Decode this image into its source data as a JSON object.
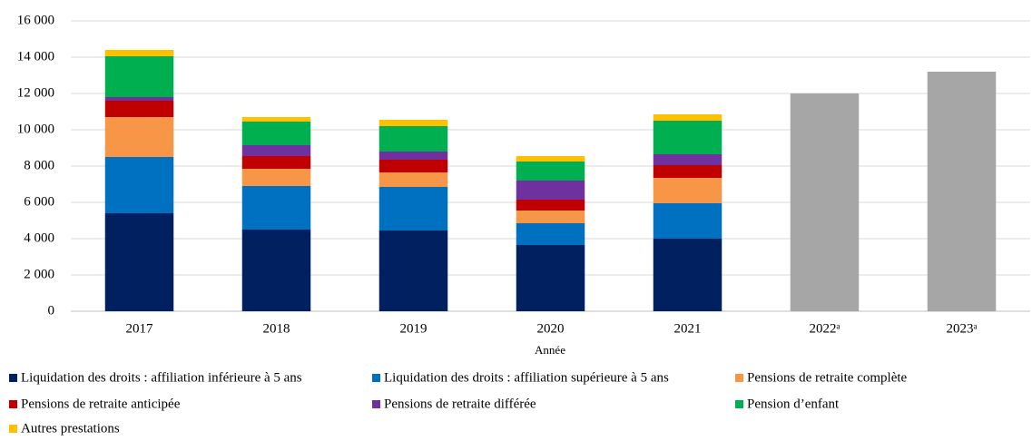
{
  "chart_data": {
    "type": "stacked_bar",
    "x_label": "Année",
    "categories": [
      "2017",
      "2018",
      "2019",
      "2020",
      "2021",
      "2022ᵃ",
      "2023ᵃ"
    ],
    "series": [
      {
        "name": "Liquidation des droits : affiliation inférieure à 5 ans",
        "color": "#002060",
        "values": [
          5400,
          4500,
          4450,
          3650,
          4000,
          null,
          null
        ]
      },
      {
        "name": "Liquidation des droits : affiliation supérieure à 5 ans",
        "color": "#0070c0",
        "values": [
          3100,
          2400,
          2400,
          1200,
          1950,
          null,
          null
        ]
      },
      {
        "name": "Pensions de retraite complète",
        "color": "#f79646",
        "values": [
          2200,
          950,
          800,
          700,
          1400,
          null,
          null
        ]
      },
      {
        "name": "Pensions de retraite anticipée",
        "color": "#c00000",
        "values": [
          900,
          700,
          700,
          600,
          700,
          null,
          null
        ]
      },
      {
        "name": "Pensions de retraite différée",
        "color": "#7030a0",
        "values": [
          200,
          600,
          450,
          1050,
          600,
          null,
          null
        ]
      },
      {
        "name": "Pension d’enfant",
        "color": "#00b050",
        "values": [
          2250,
          1300,
          1400,
          1050,
          1850,
          null,
          null
        ]
      },
      {
        "name": "Autres prestations",
        "color": "#ffc000",
        "values": [
          350,
          250,
          350,
          300,
          350,
          null,
          null
        ]
      },
      {
        "color": "#a6a6a6",
        "values": [
          null,
          null,
          null,
          null,
          null,
          12000,
          13200
        ]
      }
    ],
    "ylim": [
      0,
      16000
    ],
    "yticks": [
      0,
      {
        "value": 2000,
        "label": "2 000"
      },
      {
        "value": 4000,
        "label": "4 000"
      },
      {
        "value": 6000,
        "label": "6 000"
      },
      {
        "value": 8000,
        "label": "8 000"
      },
      {
        "value": 10000,
        "label": "10 000"
      },
      {
        "value": 12000,
        "label": "12 000"
      },
      {
        "value": 14000,
        "label": "14 000"
      },
      {
        "value": 16000,
        "label": "16 000"
      }
    ],
    "grid": true
  }
}
